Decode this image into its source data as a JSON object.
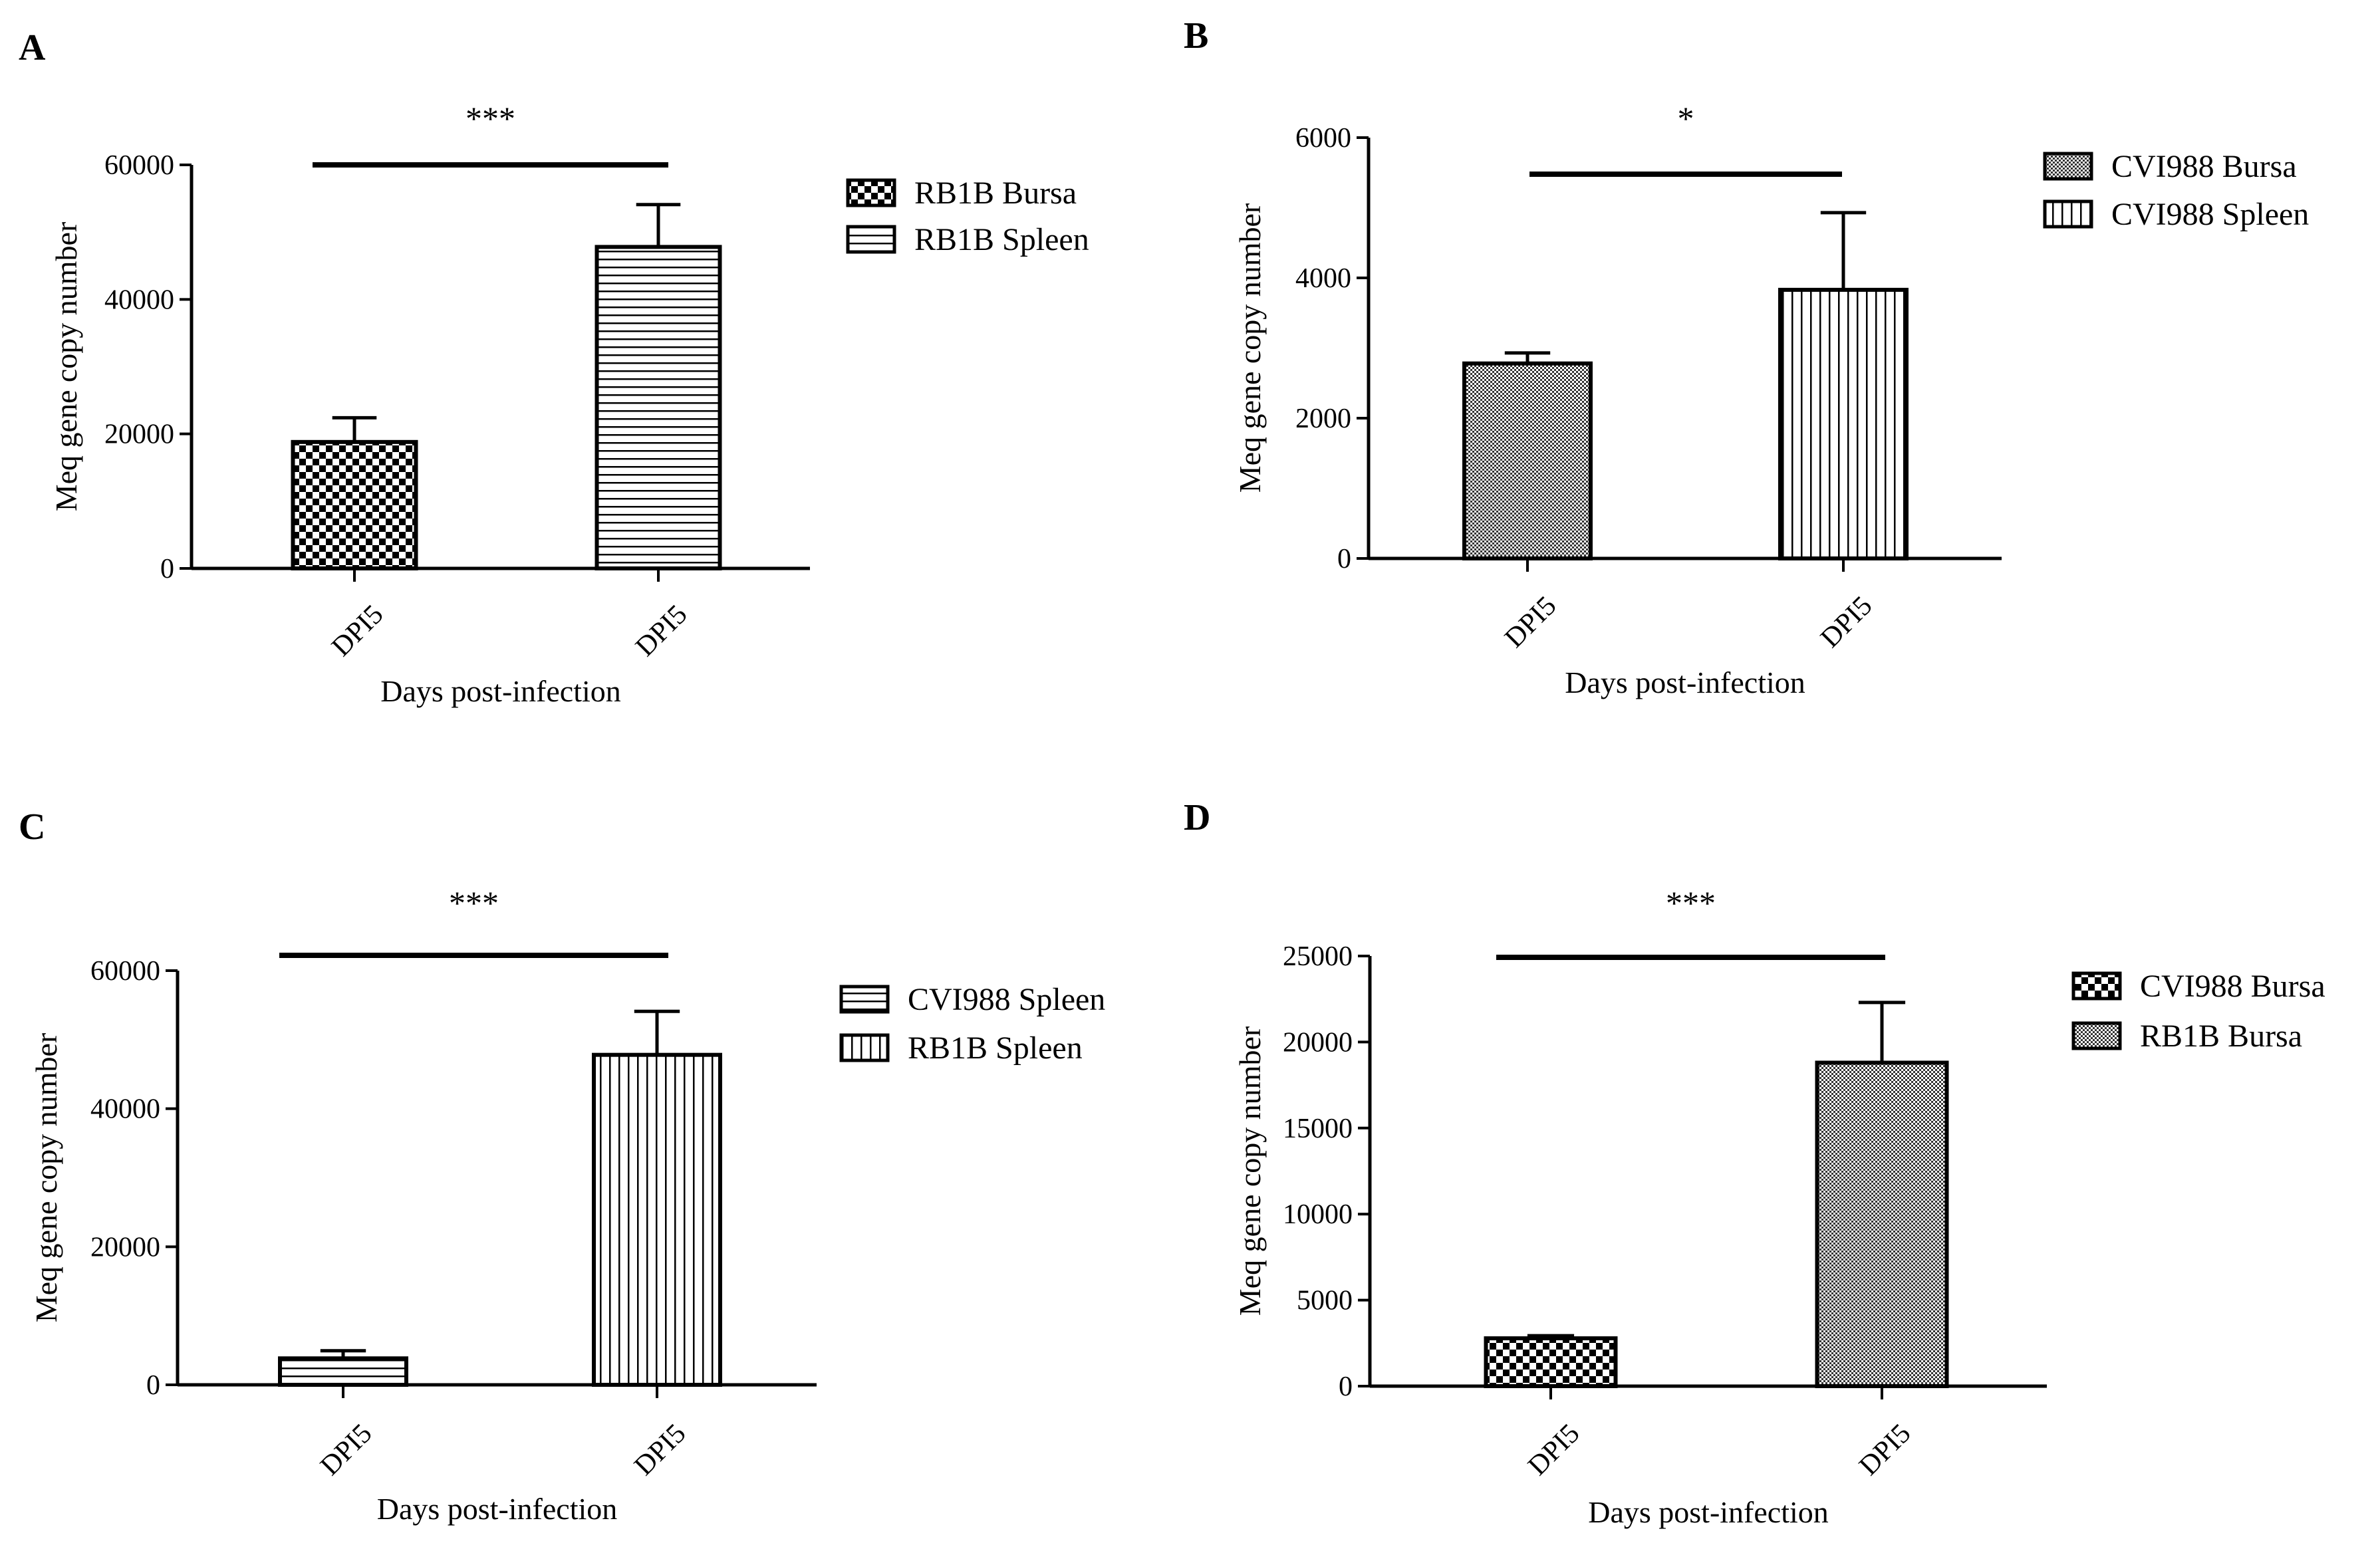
{
  "figure": {
    "panels": [
      {
        "letter": "A"
      },
      {
        "letter": "B"
      },
      {
        "letter": "C"
      },
      {
        "letter": "D"
      }
    ]
  },
  "chart_data": [
    {
      "panel": "A",
      "type": "bar",
      "ylabel": "Meq gene copy number",
      "xlabel": "Days post-infection",
      "ylim": [
        0,
        60000
      ],
      "yticks": [
        0,
        20000,
        40000,
        60000
      ],
      "categories": [
        "DPI5",
        "DPI5"
      ],
      "series": [
        {
          "name": "RB1B Bursa",
          "value": 18800,
          "error": 3600,
          "pattern": "checker"
        },
        {
          "name": "RB1B Spleen",
          "value": 47800,
          "error": 6300,
          "pattern": "hlines"
        }
      ],
      "significance": "***",
      "legend": [
        "RB1B Bursa",
        "RB1B Spleen"
      ]
    },
    {
      "panel": "B",
      "type": "bar",
      "ylabel": "Meq gene copy number",
      "xlabel": "Days post-infection",
      "ylim": [
        0,
        6000
      ],
      "yticks": [
        0,
        2000,
        4000,
        6000
      ],
      "categories": [
        "DPI5",
        "DPI5"
      ],
      "series": [
        {
          "name": "CVI988 Bursa",
          "value": 2780,
          "error": 150,
          "pattern": "fine"
        },
        {
          "name": "CVI988 Spleen",
          "value": 3830,
          "error": 1100,
          "pattern": "vlines"
        }
      ],
      "significance": "*",
      "legend": [
        "CVI988 Bursa",
        "CVI988 Spleen"
      ]
    },
    {
      "panel": "C",
      "type": "bar",
      "ylabel": "Meq gene copy number",
      "xlabel": "Days post-infection",
      "ylim": [
        0,
        60000
      ],
      "yticks": [
        0,
        20000,
        40000,
        60000
      ],
      "categories": [
        "DPI5",
        "DPI5"
      ],
      "series": [
        {
          "name": "CVI988 Spleen",
          "value": 3830,
          "error": 1100,
          "pattern": "hlines"
        },
        {
          "name": "RB1B Spleen",
          "value": 47800,
          "error": 6300,
          "pattern": "vlines"
        }
      ],
      "significance": "***",
      "legend": [
        "CVI988 Spleen",
        "RB1B Spleen"
      ]
    },
    {
      "panel": "D",
      "type": "bar",
      "ylabel": "Meq gene copy number",
      "xlabel": "Days post-infection",
      "ylim": [
        0,
        25000
      ],
      "yticks": [
        0,
        5000,
        10000,
        15000,
        20000,
        25000
      ],
      "categories": [
        "DPI5",
        "DPI5"
      ],
      "series": [
        {
          "name": "CVI988 Bursa",
          "value": 2780,
          "error": 150,
          "pattern": "checker"
        },
        {
          "name": "RB1B Bursa",
          "value": 18800,
          "error": 3500,
          "pattern": "fine"
        }
      ],
      "significance": "***",
      "legend": [
        "CVI988 Bursa",
        "RB1B Bursa"
      ]
    }
  ]
}
